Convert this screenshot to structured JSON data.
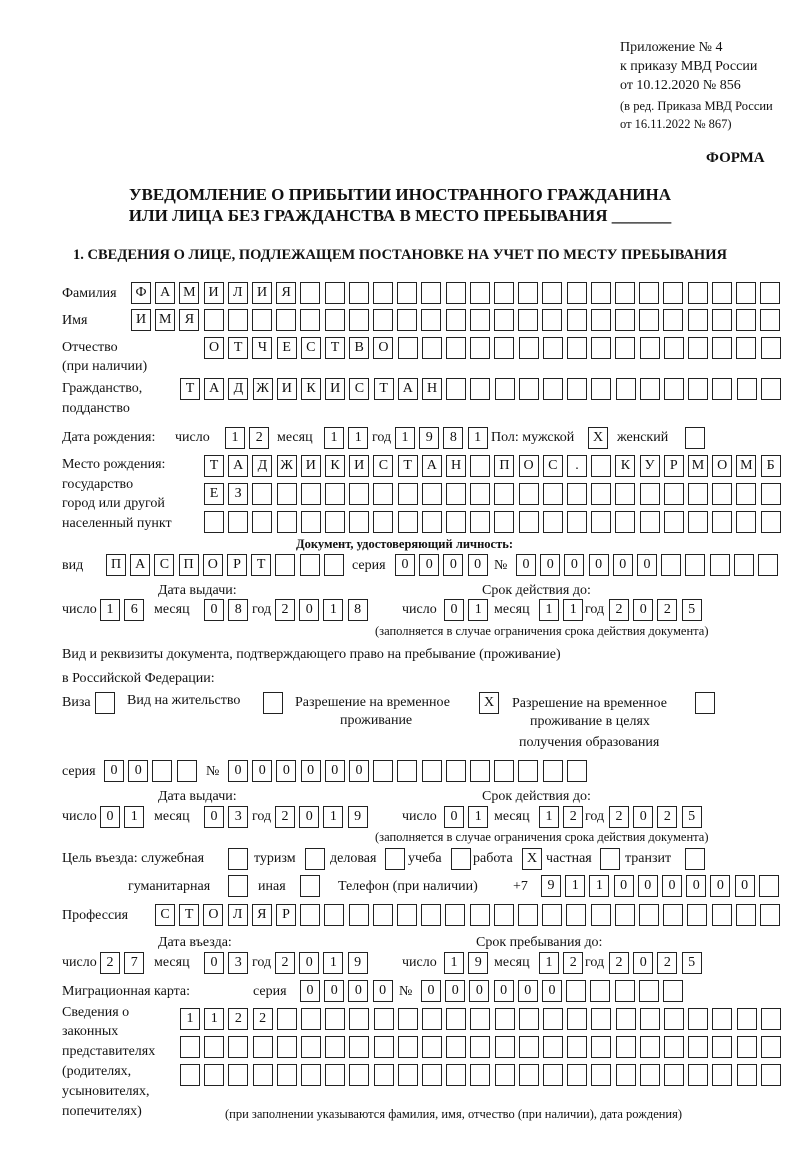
{
  "header": {
    "appendix": "Приложение № 4",
    "order": "к приказу МВД России",
    "order_date": "от 10.12.2020 № 856",
    "revision1": "(в ред. Приказа МВД России",
    "revision2": "от 16.11.2022 № 867)",
    "form": "ФОРМА"
  },
  "title": {
    "line1": "УВЕДОМЛЕНИЕ О ПРИБЫТИИ ИНОСТРАННОГО ГРАЖДАНИНА",
    "line2": "ИЛИ ЛИЦА БЕЗ ГРАЖДАНСТВА В МЕСТО ПРЕБЫВАНИЯ _______"
  },
  "section1": {
    "heading": "1. СВЕДЕНИЯ О ЛИЦЕ, ПОДЛЕЖАЩЕМ ПОСТАНОВКЕ НА УЧЕТ ПО МЕСТУ ПРЕБЫВАНИЯ"
  },
  "person": {
    "surname": {
      "label": "Фамилия",
      "value": "ФАМИЛИЯ"
    },
    "name": {
      "label": "Имя",
      "value": "ИМЯ"
    },
    "patronymic": {
      "label": "Отчество",
      "label2": "(при наличии)",
      "value": "ОТЧЕСТВО"
    },
    "citizenship": {
      "label": "Гражданство,",
      "label2": "подданство",
      "value": "ТАДЖИКИСТАН"
    },
    "birth": {
      "label": "Дата рождения:",
      "day_label": "число",
      "day": "12",
      "month_label": "месяц",
      "month": "11",
      "year_label": "год",
      "year": "1981"
    },
    "sex": {
      "label": "Пол: мужской",
      "male": "X",
      "female_label": "женский",
      "female": ""
    },
    "birthplace": {
      "label1": "Место рождения:",
      "label2": "государство",
      "label3": "город или другой",
      "label4": "населенный пункт",
      "row1": "ТАДЖИКИСТАН ПОС. КУРМОМБ",
      "row2": "ЕЗ",
      "row3": ""
    }
  },
  "id_doc": {
    "heading": "Документ, удостоверяющий личность:",
    "kind_label": "вид",
    "kind": "ПАСПОРТ",
    "series_label": "серия",
    "series": "0000",
    "number_label": "№",
    "number": "000000",
    "issue_label": "Дата выдачи:",
    "issue": {
      "day": "16",
      "month": "08",
      "year": "2018"
    },
    "valid_label": "Срок действия до:",
    "valid": {
      "day": "01",
      "month": "11",
      "year": "2025"
    },
    "note": "(заполняется в случае ограничения срока действия документа)"
  },
  "stay_doc": {
    "heading1": "Вид и реквизиты документа, подтверждающего право на пребывание (проживание)",
    "heading2": "в Российской Федерации:",
    "visa_label": "Виза",
    "visa": "",
    "residence_label": "Вид на жительство",
    "residence": "",
    "temp_label1": "Разрешение на временное",
    "temp_label2": "проживание",
    "temp": "X",
    "edu_label1": "Разрешение на временное",
    "edu_label2": "проживание в целях",
    "edu_label3": "получения образования",
    "edu": "",
    "series_label": "серия",
    "series": "00",
    "number_label": "№",
    "number": "000000",
    "issue_label": "Дата выдачи:",
    "issue": {
      "day": "01",
      "month": "03",
      "year": "2019"
    },
    "valid_label": "Срок действия до:",
    "valid": {
      "day": "01",
      "month": "12",
      "year": "2025"
    },
    "note": "(заполняется в случае ограничения срока действия документа)"
  },
  "labels": {
    "day": "число",
    "month": "месяц",
    "year": "год"
  },
  "purpose": {
    "label": "Цель въезда: служебная",
    "official": "",
    "tourism_label": "туризм",
    "tourism": "",
    "business_label": "деловая",
    "business": "",
    "study_label": "учеба",
    "study": "",
    "work_label": "работа",
    "work": "X",
    "private_label": "частная",
    "private": "",
    "transit_label": "транзит",
    "transit": "",
    "humanitarian_label": "гуманитарная",
    "humanitarian": "",
    "other_label": "иная",
    "other": ""
  },
  "phone": {
    "label": "Телефон (при наличии)",
    "prefix": "+7",
    "value": "911000000"
  },
  "profession": {
    "label": "Профессия",
    "value": "СТОЛЯР"
  },
  "entry": {
    "entry_label": "Дата въезда:",
    "entry": {
      "day": "27",
      "month": "03",
      "year": "2019"
    },
    "stay_label": "Срок пребывания до:",
    "stay": {
      "day": "19",
      "month": "12",
      "year": "2025"
    }
  },
  "migration_card": {
    "label": "Миграционная карта:",
    "series_label": "серия",
    "series": "0000",
    "number_label": "№",
    "number": "000000"
  },
  "legal_reps": {
    "l1": "Сведения о",
    "l2": "законных",
    "l3": "представителях",
    "l4": "(родителях,",
    "l5": "усыновителях,",
    "l6": "попечителях)",
    "row1": "1122",
    "row2": "",
    "row3": "",
    "note": "(при заполнении указываются фамилия, имя, отчество (при наличии), дата рождения)"
  }
}
